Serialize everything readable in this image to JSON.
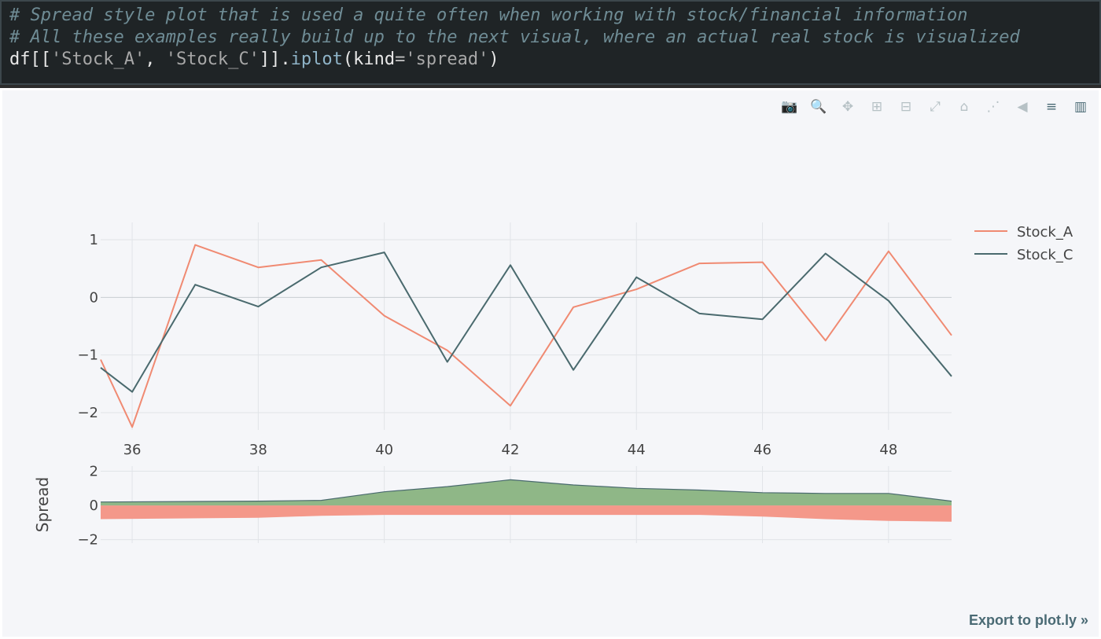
{
  "code_cell": {
    "comment1": "# Spread style plot that is used a quite often when working with stock/financial information",
    "comment2": "# All these examples really build up to the next visual, where an actual real stock is visualized",
    "code": {
      "df": "df[[",
      "str1": "'Stock_A'",
      "comma": ", ",
      "str2": "'Stock_C'",
      "close": "]].",
      "method": "iplot",
      "open_paren": "(kind",
      "eq": "=",
      "str3": "'spread'",
      "end": ")"
    }
  },
  "modebar": {
    "buttons": [
      {
        "name": "camera-icon",
        "glyph": "📷"
      },
      {
        "name": "zoom-icon",
        "glyph": "🔍"
      },
      {
        "name": "pan-icon",
        "glyph": "✥"
      },
      {
        "name": "zoom-in-icon",
        "glyph": "⊞"
      },
      {
        "name": "zoom-out-icon",
        "glyph": "⊟"
      },
      {
        "name": "autoscale-icon",
        "glyph": "⤢"
      },
      {
        "name": "reset-axes-icon",
        "glyph": "⌂"
      },
      {
        "name": "spike-lines-icon",
        "glyph": "⋰"
      },
      {
        "name": "hover-closest-icon",
        "glyph": "◀"
      },
      {
        "name": "hover-compare-icon",
        "glyph": "≡"
      },
      {
        "name": "plotly-logo-icon",
        "glyph": "▥"
      }
    ]
  },
  "export_link": "Export to plot.ly »",
  "chart_data": [
    {
      "type": "line",
      "x": [
        35.5,
        36,
        37,
        38,
        39,
        40,
        41,
        42,
        43,
        44,
        45,
        46,
        47,
        48,
        49
      ],
      "series": [
        {
          "name": "Stock_A",
          "color": "#f08a72",
          "values": [
            -1.08,
            -2.25,
            0.91,
            0.52,
            0.65,
            -0.32,
            -0.92,
            -1.88,
            -0.17,
            0.14,
            0.59,
            0.61,
            -0.75,
            0.8,
            -0.66
          ]
        },
        {
          "name": "Stock_C",
          "color": "#4a6a6e",
          "values": [
            -1.22,
            -1.64,
            0.22,
            -0.16,
            0.52,
            0.78,
            -1.12,
            0.56,
            -1.26,
            0.35,
            -0.28,
            -0.38,
            0.76,
            -0.06,
            -1.37
          ]
        }
      ],
      "xlim": [
        35.5,
        49
      ],
      "ylim": [
        -2.3,
        1.3
      ],
      "xticks": [
        36,
        38,
        40,
        42,
        44,
        46,
        48
      ],
      "yticks": [
        1,
        0,
        -1,
        -2
      ],
      "ytick_labels": [
        "1",
        "0",
        "−1",
        "−2"
      ],
      "xtick_labels": [
        "36",
        "38",
        "40",
        "42",
        "44",
        "46",
        "48"
      ],
      "legend": "top-right",
      "grid": true
    },
    {
      "type": "area",
      "ylabel": "Spread",
      "x": [
        35.5,
        38,
        39,
        40,
        41,
        42,
        43,
        44,
        45,
        46,
        47,
        48,
        49
      ],
      "positive_color": "#8fb787",
      "negative_color": "#f4988a",
      "pos_values": [
        0.2,
        0.25,
        0.3,
        0.8,
        1.1,
        1.5,
        1.2,
        1.0,
        0.9,
        0.75,
        0.7,
        0.7,
        0.25
      ],
      "neg_values": [
        -0.8,
        -0.72,
        -0.6,
        -0.55,
        -0.55,
        -0.55,
        -0.55,
        -0.55,
        -0.55,
        -0.65,
        -0.8,
        -0.9,
        -0.95
      ],
      "ylim": [
        -2.2,
        2.3
      ],
      "yticks": [
        2,
        0,
        -2
      ],
      "ytick_labels": [
        "2",
        "0",
        "−2"
      ],
      "grid": true
    }
  ]
}
